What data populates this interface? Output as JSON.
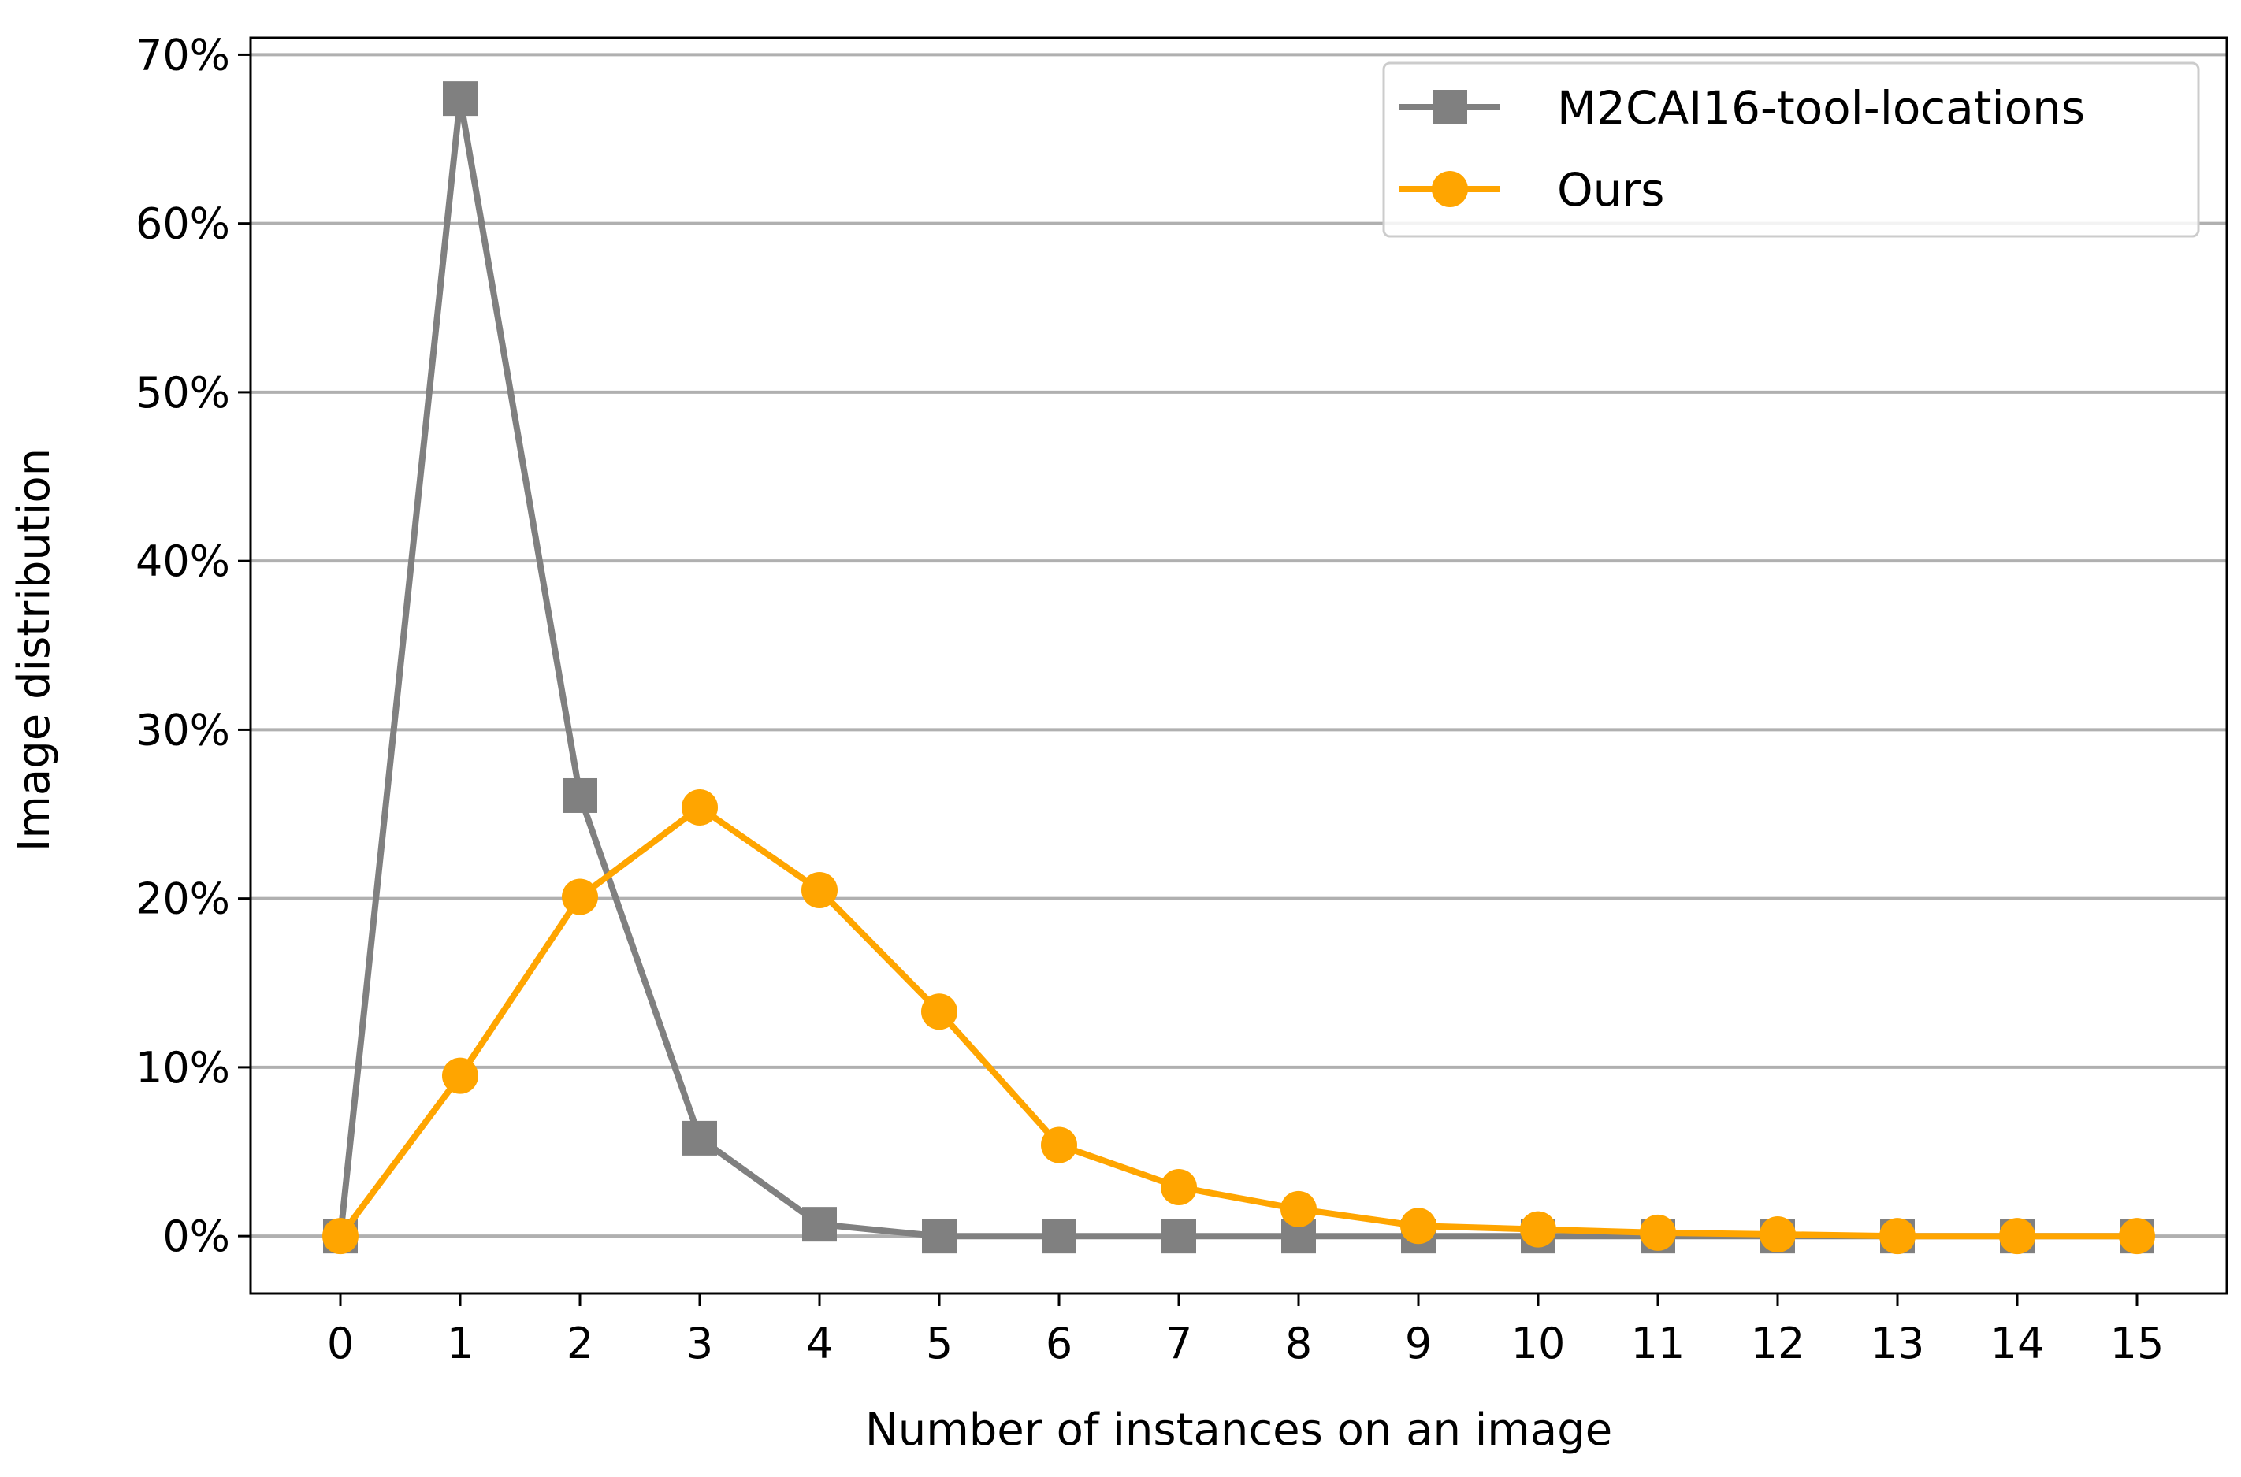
{
  "chart_data": {
    "type": "line",
    "title": "",
    "xlabel": "Number of instances on an image",
    "ylabel": "Image distribution",
    "x": [
      0,
      1,
      2,
      3,
      4,
      5,
      6,
      7,
      8,
      9,
      10,
      11,
      12,
      13,
      14,
      15
    ],
    "x_tick_labels": [
      "0",
      "1",
      "2",
      "3",
      "4",
      "5",
      "6",
      "7",
      "8",
      "9",
      "10",
      "11",
      "12",
      "13",
      "14",
      "15"
    ],
    "xlim": [
      -0.75,
      15.75
    ],
    "ylim": [
      -3.4,
      71
    ],
    "y_ticks": [
      0,
      10,
      20,
      30,
      40,
      50,
      60,
      70
    ],
    "y_tick_labels": [
      "0%",
      "10%",
      "20%",
      "30%",
      "40%",
      "50%",
      "60%",
      "70%"
    ],
    "grid": "horizontal",
    "legend_position": "top-right",
    "series": [
      {
        "name": "M2CAI16-tool-locations",
        "color": "#808080",
        "marker": "square",
        "values": [
          0.0,
          67.4,
          26.1,
          5.8,
          0.7,
          0.0,
          0.0,
          0.0,
          0.0,
          0.0,
          0.0,
          0.0,
          0.0,
          0.0,
          0.0,
          0.0
        ]
      },
      {
        "name": "Ours",
        "color": "#FFA500",
        "marker": "circle",
        "values": [
          0.0,
          9.5,
          20.1,
          25.4,
          20.5,
          13.3,
          5.4,
          2.9,
          1.6,
          0.6,
          0.4,
          0.2,
          0.1,
          0.0,
          0.0,
          0.0
        ]
      }
    ]
  }
}
